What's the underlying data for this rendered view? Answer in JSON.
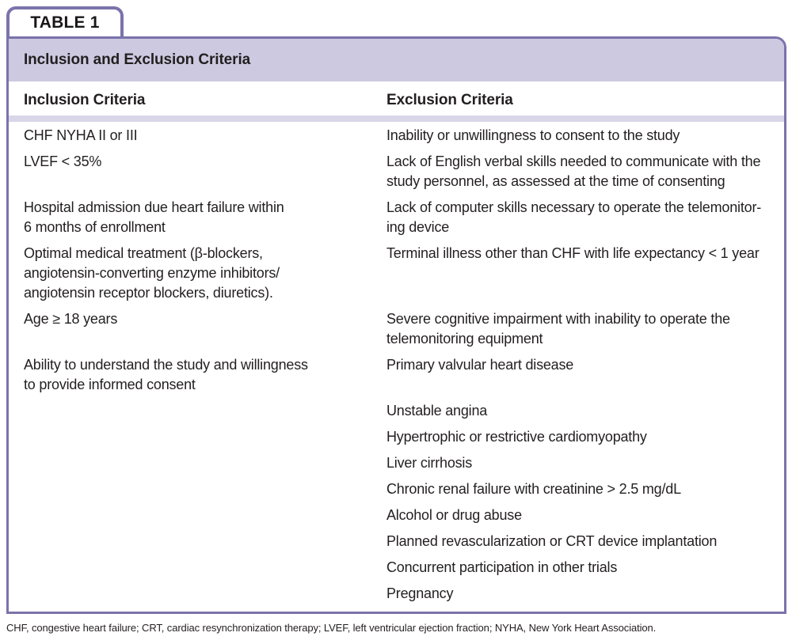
{
  "tab_label": "TABLE 1",
  "table": {
    "title": "Inclusion and Exclusion Criteria",
    "columns": {
      "inclusion": "Inclusion Criteria",
      "exclusion": "Exclusion Criteria"
    },
    "rows": [
      {
        "inclusion": "CHF NYHA II or III",
        "exclusion": "Inability or unwillingness to consent to the study"
      },
      {
        "inclusion": "LVEF < 35%",
        "exclusion": "Lack of English verbal skills needed to communicate with the\nstudy personnel, as assessed at the time of consenting"
      },
      {
        "inclusion": "Hospital admission due heart failure within\n6 months of enrollment",
        "exclusion": "Lack of computer skills necessary to operate the telemonitor-\ning device"
      },
      {
        "inclusion": "Optimal medical treatment (β-blockers,\nangiotensin-converting enzyme inhibitors/\nangiotensin receptor blockers, diuretics).",
        "exclusion": "Terminal illness other than CHF with life expectancy < 1 year"
      },
      {
        "inclusion": "Age ≥ 18 years",
        "exclusion": "Severe cognitive impairment with inability to operate the\ntelemonitoring equipment"
      },
      {
        "inclusion": "Ability to understand the study and willingness\nto provide informed consent",
        "exclusion": "Primary valvular heart disease"
      },
      {
        "inclusion": "",
        "exclusion": "Unstable angina"
      },
      {
        "inclusion": "",
        "exclusion": "Hypertrophic or restrictive cardiomyopathy"
      },
      {
        "inclusion": "",
        "exclusion": "Liver cirrhosis"
      },
      {
        "inclusion": "",
        "exclusion": "Chronic renal failure with creatinine > 2.5 mg/dL"
      },
      {
        "inclusion": "",
        "exclusion": "Alcohol or drug abuse"
      },
      {
        "inclusion": "",
        "exclusion": "Planned revascularization or CRT device implantation"
      },
      {
        "inclusion": "",
        "exclusion": "Concurrent participation in other trials"
      },
      {
        "inclusion": "",
        "exclusion": "Pregnancy"
      }
    ]
  },
  "footnote": "CHF, congestive heart failure; CRT, cardiac resynchronization therapy; LVEF, left ventricular ejection fraction; NYHA, New York Heart Association.",
  "colors": {
    "border_purple": "#7a73ab",
    "title_band": "#ccc9e0",
    "header_divider": "#d8d6e8",
    "text": "#231f20"
  }
}
